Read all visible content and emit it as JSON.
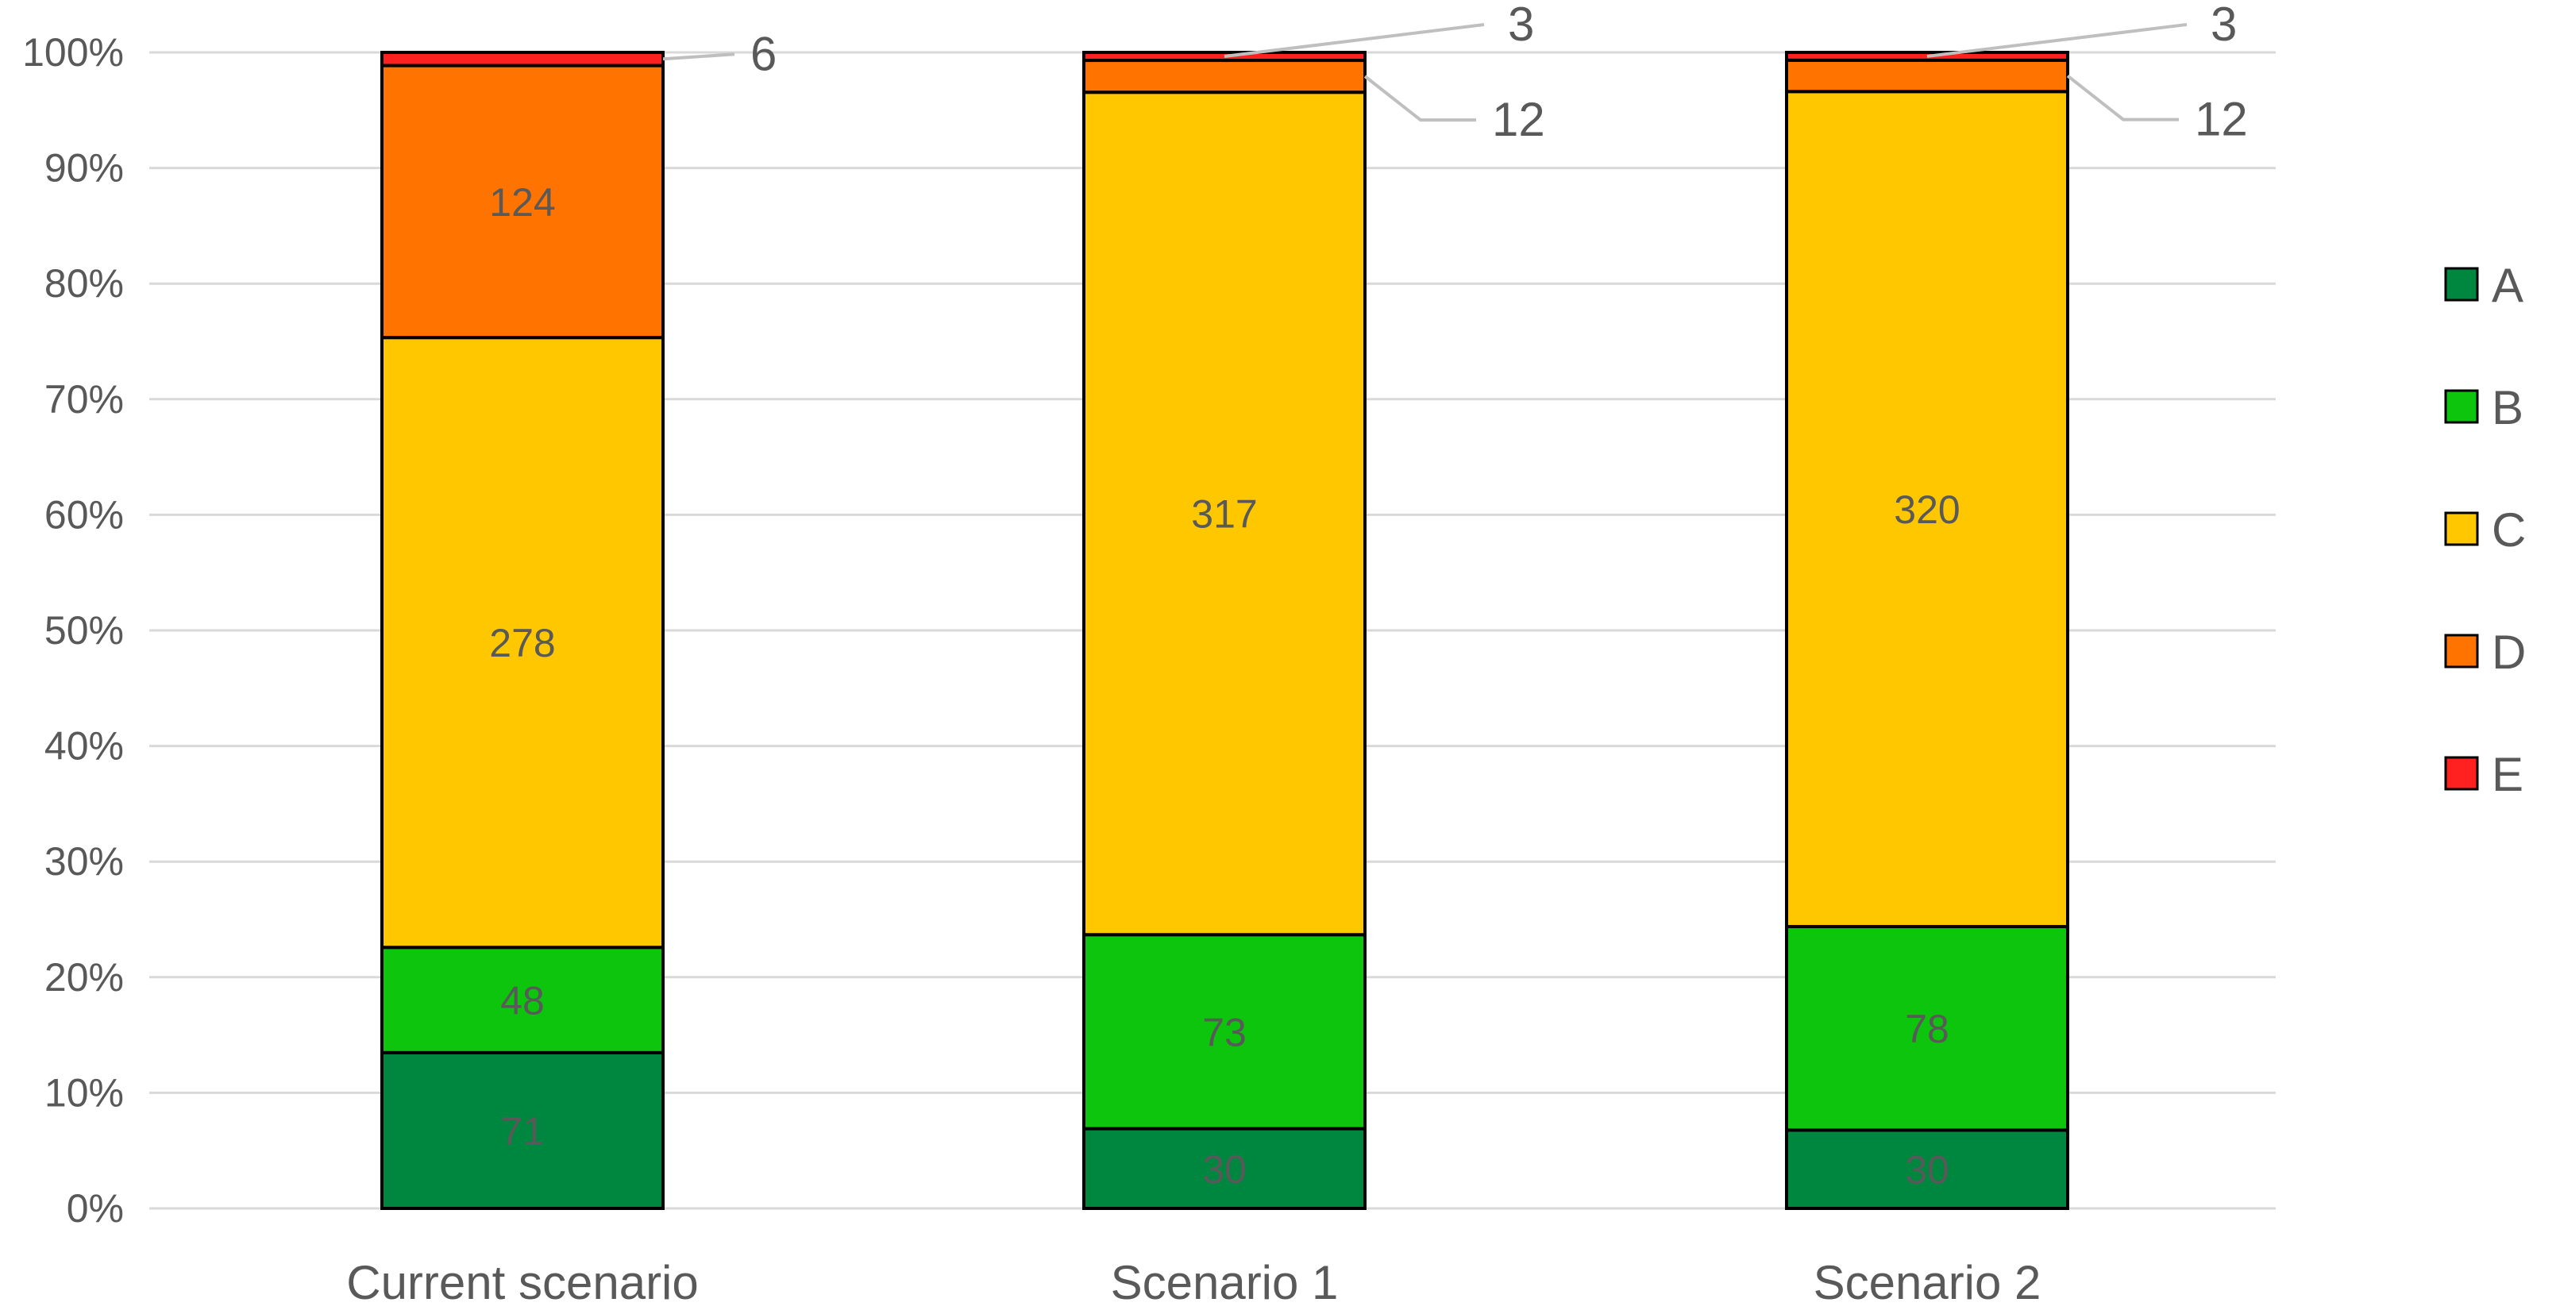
{
  "chart_data": {
    "type": "bar",
    "stacking": "percent",
    "categories": [
      "Current scenario",
      "Scenario 1",
      "Scenario 2"
    ],
    "series": [
      {
        "name": "A",
        "color": "#00873f",
        "values": [
          71,
          30,
          30
        ]
      },
      {
        "name": "B",
        "color": "#0cc50c",
        "values": [
          48,
          73,
          78
        ]
      },
      {
        "name": "C",
        "color": "#ffc700",
        "values": [
          278,
          317,
          320
        ]
      },
      {
        "name": "D",
        "color": "#ff7300",
        "values": [
          124,
          12,
          12
        ]
      },
      {
        "name": "E",
        "color": "#ff2020",
        "values": [
          6,
          3,
          3
        ]
      }
    ],
    "y_ticks": [
      "0%",
      "10%",
      "20%",
      "30%",
      "40%",
      "50%",
      "60%",
      "70%",
      "80%",
      "90%",
      "100%"
    ],
    "ylim": [
      0,
      100
    ],
    "grid": true,
    "legend": "right",
    "title": "",
    "xlabel": "",
    "ylabel": ""
  }
}
